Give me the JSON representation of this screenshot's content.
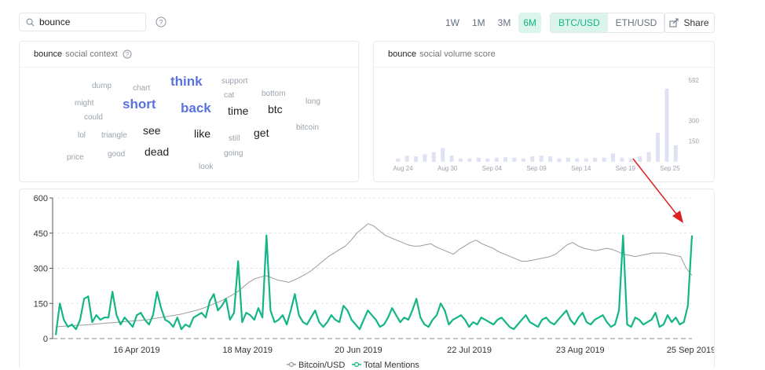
{
  "search": {
    "value": "bounce"
  },
  "range_tabs": [
    "1W",
    "1M",
    "3M",
    "6M"
  ],
  "active_range": "6M",
  "pairs": [
    "BTC/USD",
    "ETH/USD"
  ],
  "active_pair": "BTC/USD",
  "share_label": "Share",
  "context_panel": {
    "keyword": "bounce",
    "title": "social context"
  },
  "volume_panel": {
    "keyword": "bounce",
    "title": "social volume score"
  },
  "word_cloud": [
    {
      "text": "dump",
      "size": 10,
      "color": "#9aa3ae"
    },
    {
      "text": "chart",
      "size": 10,
      "color": "#9aa3ae"
    },
    {
      "text": "think",
      "size": 17,
      "color": "#5a72e0"
    },
    {
      "text": "support",
      "size": 10,
      "color": "#9aa3ae"
    },
    {
      "text": "might",
      "size": 10,
      "color": "#9aa3ae"
    },
    {
      "text": "short",
      "size": 17,
      "color": "#5a72e0"
    },
    {
      "text": "back",
      "size": 17,
      "color": "#5a72e0"
    },
    {
      "text": "cat",
      "size": 10,
      "color": "#9aa3ae"
    },
    {
      "text": "bottom",
      "size": 10,
      "color": "#9aa3ae"
    },
    {
      "text": "long",
      "size": 10,
      "color": "#9aa3ae"
    },
    {
      "text": "could",
      "size": 10,
      "color": "#9aa3ae"
    },
    {
      "text": "time",
      "size": 14,
      "color": "#222222"
    },
    {
      "text": "btc",
      "size": 14,
      "color": "#222222"
    },
    {
      "text": "lol",
      "size": 10,
      "color": "#9aa3ae"
    },
    {
      "text": "triangle",
      "size": 10,
      "color": "#9aa3ae"
    },
    {
      "text": "see",
      "size": 14,
      "color": "#222222"
    },
    {
      "text": "like",
      "size": 14,
      "color": "#222222"
    },
    {
      "text": "bitcoin",
      "size": 10,
      "color": "#9aa3ae"
    },
    {
      "text": "still",
      "size": 10,
      "color": "#9aa3ae"
    },
    {
      "text": "get",
      "size": 14,
      "color": "#222222"
    },
    {
      "text": "price",
      "size": 10,
      "color": "#9aa3ae"
    },
    {
      "text": "good",
      "size": 10,
      "color": "#9aa3ae"
    },
    {
      "text": "dead",
      "size": 14,
      "color": "#222222"
    },
    {
      "text": "going",
      "size": 10,
      "color": "#9aa3ae"
    },
    {
      "text": "look",
      "size": 10,
      "color": "#9aa3ae"
    }
  ],
  "chart_data": [
    {
      "type": "bar",
      "title": "social volume score",
      "y_ticks": [
        150,
        300,
        592
      ],
      "ylim": [
        0,
        592
      ],
      "x_ticks": [
        "Aug 24",
        "Aug 30",
        "Sep 04",
        "Sep 09",
        "Sep 14",
        "Sep 19",
        "Sep 25"
      ],
      "values": [
        25,
        45,
        40,
        55,
        70,
        100,
        45,
        25,
        25,
        30,
        25,
        30,
        35,
        30,
        25,
        40,
        45,
        40,
        25,
        30,
        25,
        25,
        30,
        30,
        60,
        30,
        25,
        40,
        70,
        210,
        530,
        120
      ],
      "color": "#dfe2f2"
    },
    {
      "type": "line",
      "ylim": [
        0,
        600
      ],
      "y_ticks": [
        0,
        150,
        300,
        450,
        600
      ],
      "x_ticks": [
        "16 Apr 2019",
        "18 May 2019",
        "20 Jun 2019",
        "22 Jul 2019",
        "23 Aug 2019",
        "25 Sep 2019"
      ],
      "series": [
        {
          "name": "Bitcoin/USD",
          "color": "#9b9b9b",
          "values": [
            50,
            52,
            54,
            55,
            57,
            58,
            60,
            62,
            64,
            66,
            68,
            70,
            72,
            74,
            76,
            78,
            80,
            84,
            88,
            92,
            96,
            100,
            104,
            110,
            116,
            122,
            130,
            140,
            150,
            160,
            172,
            185,
            200,
            220,
            240,
            255,
            262,
            268,
            260,
            250,
            245,
            240,
            250,
            262,
            275,
            290,
            310,
            330,
            350,
            365,
            380,
            395,
            420,
            450,
            470,
            490,
            480,
            460,
            440,
            430,
            420,
            410,
            400,
            395,
            395,
            400,
            405,
            390,
            380,
            370,
            360,
            380,
            395,
            410,
            420,
            405,
            395,
            385,
            370,
            360,
            350,
            340,
            330,
            330,
            335,
            340,
            345,
            350,
            360,
            380,
            400,
            410,
            395,
            385,
            380,
            375,
            380,
            385,
            380,
            370,
            360,
            355,
            350,
            355,
            360,
            365,
            365,
            365,
            360,
            355,
            350,
            300,
            270
          ]
        },
        {
          "name": "Total Mentions",
          "color": "#14b587",
          "values": [
            15,
            150,
            80,
            50,
            60,
            40,
            80,
            170,
            180,
            70,
            100,
            80,
            90,
            90,
            200,
            100,
            60,
            90,
            70,
            50,
            100,
            110,
            80,
            60,
            100,
            200,
            130,
            80,
            70,
            50,
            90,
            40,
            60,
            50,
            90,
            100,
            110,
            90,
            160,
            190,
            120,
            140,
            170,
            80,
            110,
            330,
            70,
            110,
            100,
            80,
            130,
            90,
            440,
            120,
            70,
            80,
            100,
            60,
            120,
            190,
            100,
            70,
            60,
            90,
            120,
            70,
            50,
            70,
            100,
            80,
            70,
            140,
            120,
            80,
            60,
            40,
            80,
            120,
            100,
            80,
            50,
            60,
            90,
            130,
            100,
            70,
            90,
            80,
            120,
            170,
            90,
            60,
            50,
            80,
            100,
            150,
            120,
            60,
            80,
            90,
            100,
            80,
            50,
            70,
            60,
            90,
            80,
            70,
            60,
            80,
            90,
            70,
            50,
            40,
            60,
            80,
            100,
            70,
            60,
            50,
            80,
            90,
            70,
            60,
            80,
            100,
            120,
            80,
            60,
            90,
            110,
            70,
            60,
            80,
            90,
            100,
            70,
            50,
            60,
            120,
            440,
            60,
            50,
            90,
            80,
            60,
            70,
            80,
            110,
            50,
            60,
            100,
            70,
            90,
            60,
            70,
            140,
            440
          ]
        }
      ]
    }
  ]
}
